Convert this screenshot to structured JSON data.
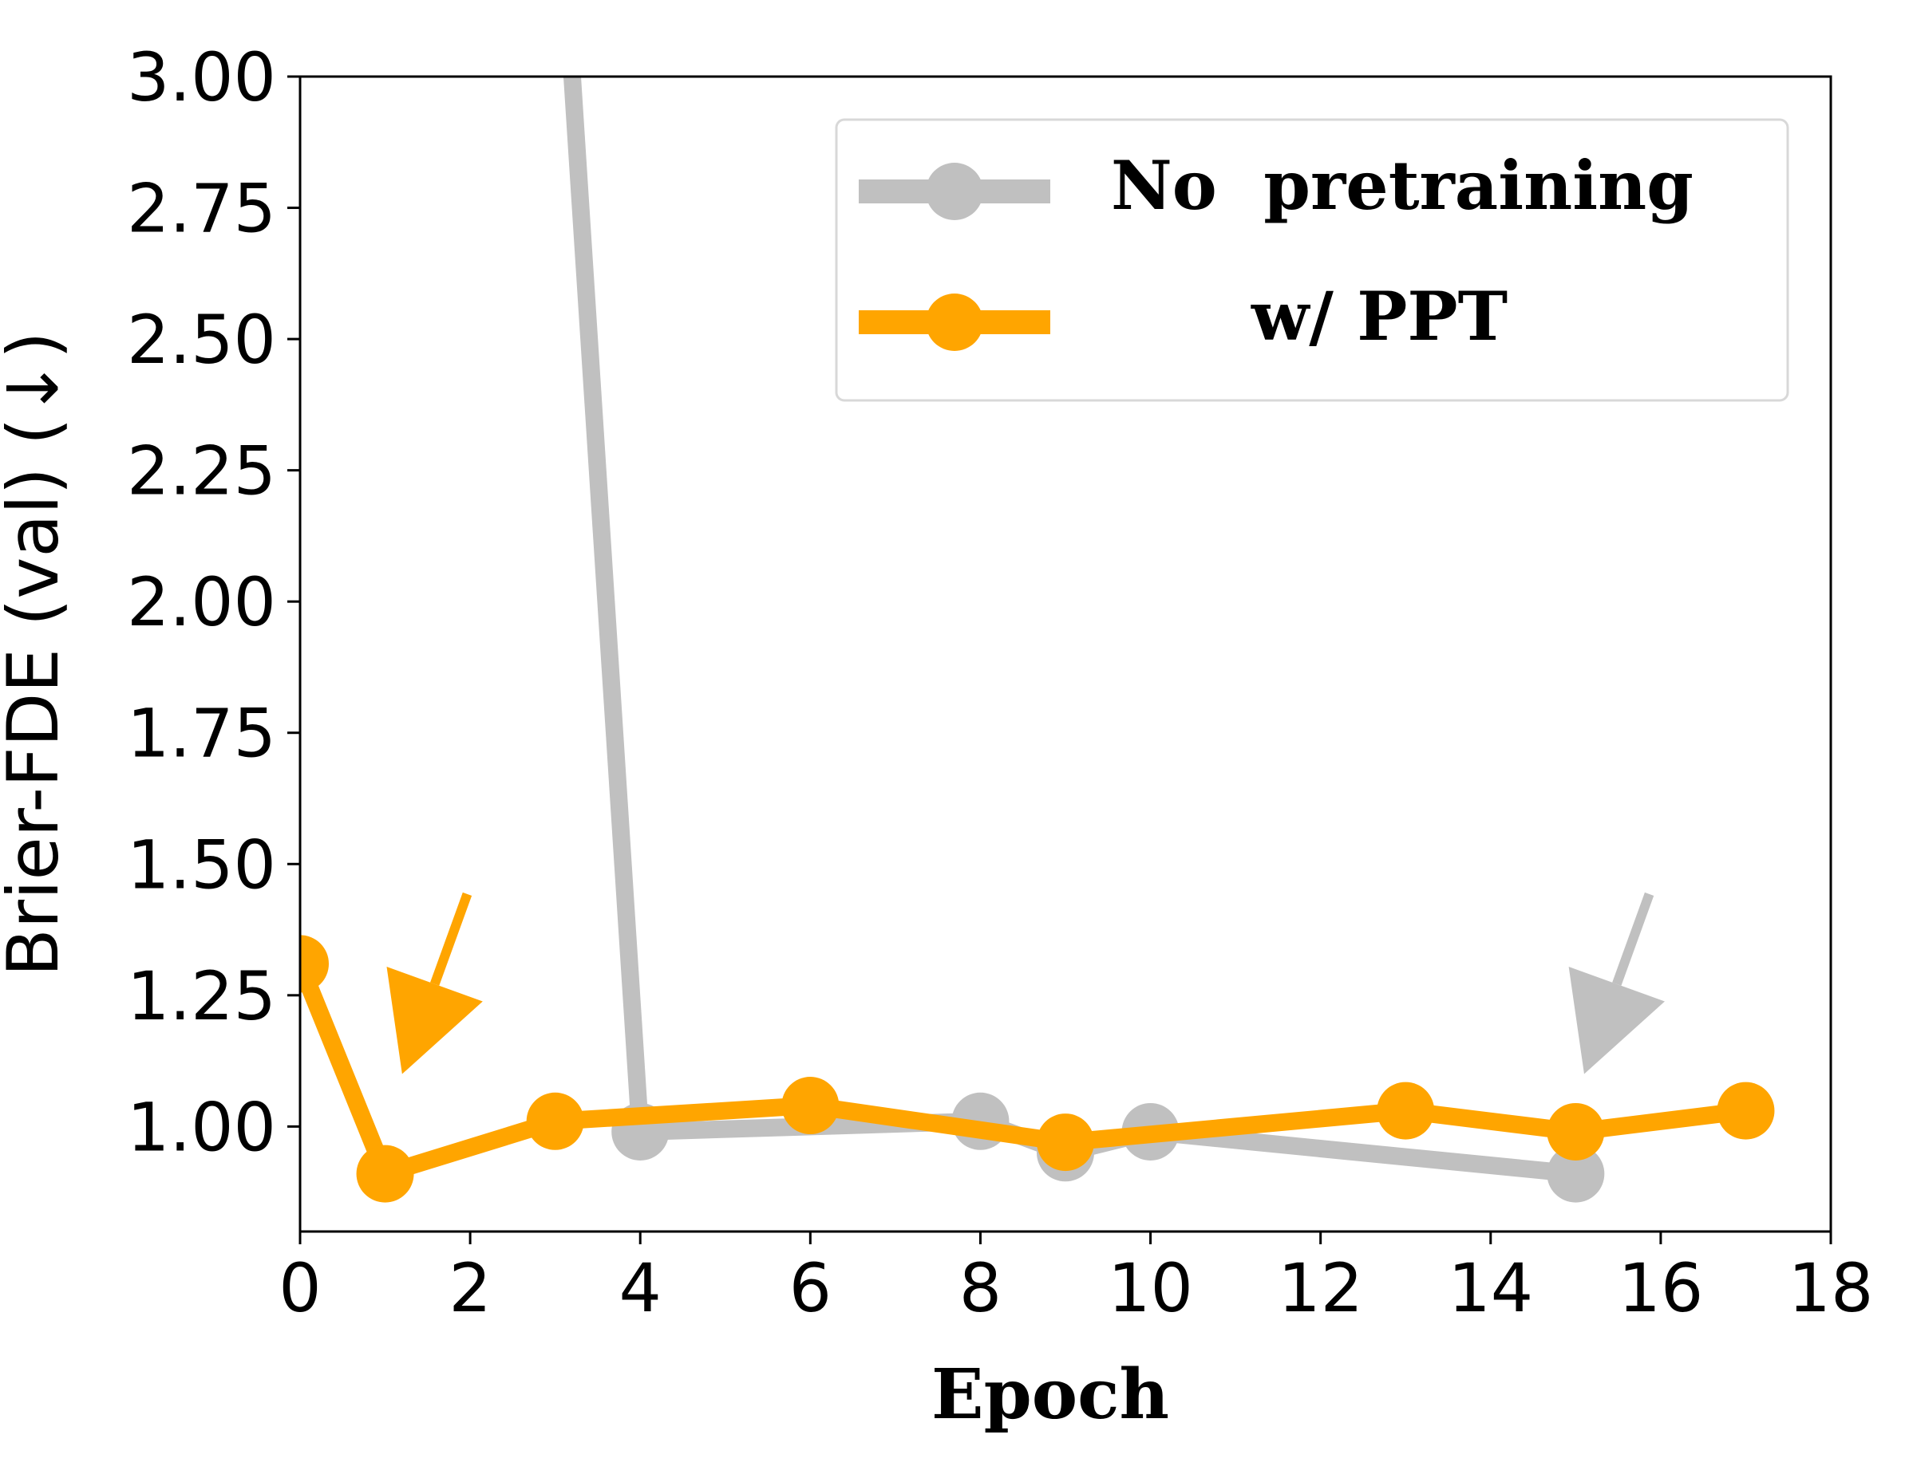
{
  "chart_data": {
    "type": "line",
    "title": "",
    "xlabel": "Epoch",
    "ylabel": "Brier-FDE (val) (↓)",
    "xlim": [
      0,
      18
    ],
    "ylim": [
      0.8,
      3.0
    ],
    "xticks": [
      "0",
      "2",
      "4",
      "6",
      "8",
      "10",
      "12",
      "14",
      "16",
      "18"
    ],
    "yticks": [
      "1.00",
      "1.25",
      "1.50",
      "1.75",
      "2.00",
      "2.25",
      "2.50",
      "2.75",
      "3.00"
    ],
    "grid": false,
    "legend_position": "top-right",
    "series": [
      {
        "name": "No  pretraining",
        "color": "#c0c0c0",
        "x": [
          3.2,
          4,
          8,
          9,
          10,
          15
        ],
        "y": [
          3.0,
          0.99,
          1.01,
          0.95,
          0.99,
          0.91
        ],
        "markers_at": [
          4,
          8,
          9,
          10,
          15
        ]
      },
      {
        "name": "w/ PPT",
        "color": "#ffa500",
        "x": [
          0,
          1,
          3,
          6,
          9,
          13,
          15,
          17
        ],
        "y": [
          1.31,
          0.91,
          1.01,
          1.04,
          0.97,
          1.03,
          0.99,
          1.03
        ],
        "markers_at": [
          0,
          1,
          3,
          6,
          9,
          13,
          15,
          17
        ]
      }
    ],
    "annotations": [
      {
        "type": "arrow",
        "color": "#ffa500",
        "points_to": {
          "x": 1.2,
          "y": 1.1
        }
      },
      {
        "type": "arrow",
        "color": "#c0c0c0",
        "points_to": {
          "x": 15.1,
          "y": 1.1
        }
      }
    ]
  }
}
